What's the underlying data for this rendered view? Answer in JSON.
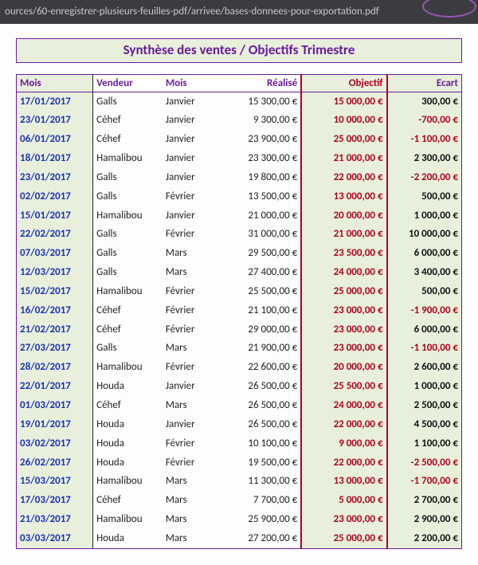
{
  "urlbar": {
    "path": "ources/60-enregistrer-plusieurs-feuilles-pdf/arrivee/bases-donnees-pour-exportation.pdf"
  },
  "title": "Synthèse des ventes / Objectifs Trimestre",
  "columns": {
    "mois": "Mois",
    "vendeur": "Vendeur",
    "mois2": "Mois",
    "realise": "Réalisé",
    "objectif": "Objectif",
    "ecart": "Ecart"
  },
  "colors": {
    "purple": "#6a1b9a",
    "greenFill": "#e8f0dc",
    "red": "#b00020",
    "dateBlue": "#1932b0",
    "urlbarBg": "#3c3c40"
  },
  "rows": [
    {
      "date": "17/01/2017",
      "vend": "Galls",
      "mois": "Janvier",
      "real": "15 300,00 €",
      "obj": "15 000,00 €",
      "ecart": "300,00 €",
      "neg": false
    },
    {
      "date": "23/01/2017",
      "vend": "Céhef",
      "mois": "Janvier",
      "real": "9 300,00 €",
      "obj": "10 000,00 €",
      "ecart": "-700,00 €",
      "neg": true
    },
    {
      "date": "06/01/2017",
      "vend": "Céhef",
      "mois": "Janvier",
      "real": "23 900,00 €",
      "obj": "25 000,00 €",
      "ecart": "-1 100,00 €",
      "neg": true
    },
    {
      "date": "18/01/2017",
      "vend": "Hamalibou",
      "mois": "Janvier",
      "real": "23 300,00 €",
      "obj": "21 000,00 €",
      "ecart": "2 300,00 €",
      "neg": false
    },
    {
      "date": "23/01/2017",
      "vend": "Galls",
      "mois": "Janvier",
      "real": "19 800,00 €",
      "obj": "22 000,00 €",
      "ecart": "-2 200,00 €",
      "neg": true
    },
    {
      "date": "02/02/2017",
      "vend": "Galls",
      "mois": "Février",
      "real": "13 500,00 €",
      "obj": "13 000,00 €",
      "ecart": "500,00 €",
      "neg": false
    },
    {
      "date": "15/01/2017",
      "vend": "Hamalibou",
      "mois": "Janvier",
      "real": "21 000,00 €",
      "obj": "20 000,00 €",
      "ecart": "1 000,00 €",
      "neg": false
    },
    {
      "date": "22/02/2017",
      "vend": "Galls",
      "mois": "Février",
      "real": "31 000,00 €",
      "obj": "21 000,00 €",
      "ecart": "10 000,00 €",
      "neg": false
    },
    {
      "date": "07/03/2017",
      "vend": "Galls",
      "mois": "Mars",
      "real": "29 500,00 €",
      "obj": "23 500,00 €",
      "ecart": "6 000,00 €",
      "neg": false
    },
    {
      "date": "12/03/2017",
      "vend": "Galls",
      "mois": "Mars",
      "real": "27 400,00 €",
      "obj": "24 000,00 €",
      "ecart": "3 400,00 €",
      "neg": false
    },
    {
      "date": "15/02/2017",
      "vend": "Hamalibou",
      "mois": "Février",
      "real": "25 500,00 €",
      "obj": "25 000,00 €",
      "ecart": "500,00 €",
      "neg": false
    },
    {
      "date": "16/02/2017",
      "vend": "Céhef",
      "mois": "Février",
      "real": "21 100,00 €",
      "obj": "23 000,00 €",
      "ecart": "-1 900,00 €",
      "neg": true
    },
    {
      "date": "21/02/2017",
      "vend": "Céhef",
      "mois": "Février",
      "real": "29 000,00 €",
      "obj": "23 000,00 €",
      "ecart": "6 000,00 €",
      "neg": false
    },
    {
      "date": "27/03/2017",
      "vend": "Galls",
      "mois": "Mars",
      "real": "21 900,00 €",
      "obj": "23 000,00 €",
      "ecart": "-1 100,00 €",
      "neg": true
    },
    {
      "date": "28/02/2017",
      "vend": "Hamalibou",
      "mois": "Février",
      "real": "22 600,00 €",
      "obj": "20 000,00 €",
      "ecart": "2 600,00 €",
      "neg": false
    },
    {
      "date": "22/01/2017",
      "vend": "Houda",
      "mois": "Janvier",
      "real": "26 500,00 €",
      "obj": "25 500,00 €",
      "ecart": "1 000,00 €",
      "neg": false
    },
    {
      "date": "01/03/2017",
      "vend": "Céhef",
      "mois": "Mars",
      "real": "26 500,00 €",
      "obj": "24 000,00 €",
      "ecart": "2 500,00 €",
      "neg": false
    },
    {
      "date": "19/01/2017",
      "vend": "Houda",
      "mois": "Janvier",
      "real": "26 500,00 €",
      "obj": "22 000,00 €",
      "ecart": "4 500,00 €",
      "neg": false
    },
    {
      "date": "03/02/2017",
      "vend": "Houda",
      "mois": "Février",
      "real": "10 100,00 €",
      "obj": "9 000,00 €",
      "ecart": "1 100,00 €",
      "neg": false
    },
    {
      "date": "26/02/2017",
      "vend": "Houda",
      "mois": "Février",
      "real": "19 500,00 €",
      "obj": "22 000,00 €",
      "ecart": "-2 500,00 €",
      "neg": true
    },
    {
      "date": "15/03/2017",
      "vend": "Hamalibou",
      "mois": "Mars",
      "real": "11 300,00 €",
      "obj": "13 000,00 €",
      "ecart": "-1 700,00 €",
      "neg": true
    },
    {
      "date": "17/03/2017",
      "vend": "Céhef",
      "mois": "Mars",
      "real": "7 700,00 €",
      "obj": "5 000,00 €",
      "ecart": "2 700,00 €",
      "neg": false
    },
    {
      "date": "21/03/2017",
      "vend": "Hamalibou",
      "mois": "Mars",
      "real": "25 900,00 €",
      "obj": "23 000,00 €",
      "ecart": "2 900,00 €",
      "neg": false
    },
    {
      "date": "03/03/2017",
      "vend": "Houda",
      "mois": "Mars",
      "real": "27 200,00 €",
      "obj": "25 000,00 €",
      "ecart": "2 200,00 €",
      "neg": false
    }
  ]
}
